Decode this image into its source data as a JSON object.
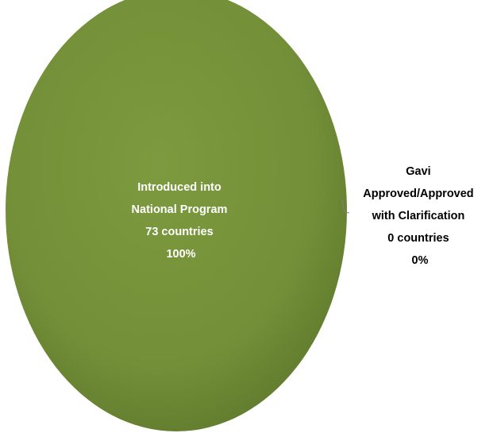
{
  "chart_data": {
    "type": "pie",
    "slices": [
      {
        "name_lines": [
          "Introduced into",
          "National Program"
        ],
        "count_label": "73 countries",
        "value": 73,
        "percent_label": "100%",
        "color": "#77933c",
        "label_color": "#ffffff"
      },
      {
        "name_lines": [
          "Gavi",
          "Approved/Approved",
          "with Clarification"
        ],
        "count_label": "0 countries",
        "value": 0,
        "percent_label": "0%",
        "color": "#4f81bd",
        "label_color": "#000000"
      }
    ],
    "legend": "none"
  }
}
